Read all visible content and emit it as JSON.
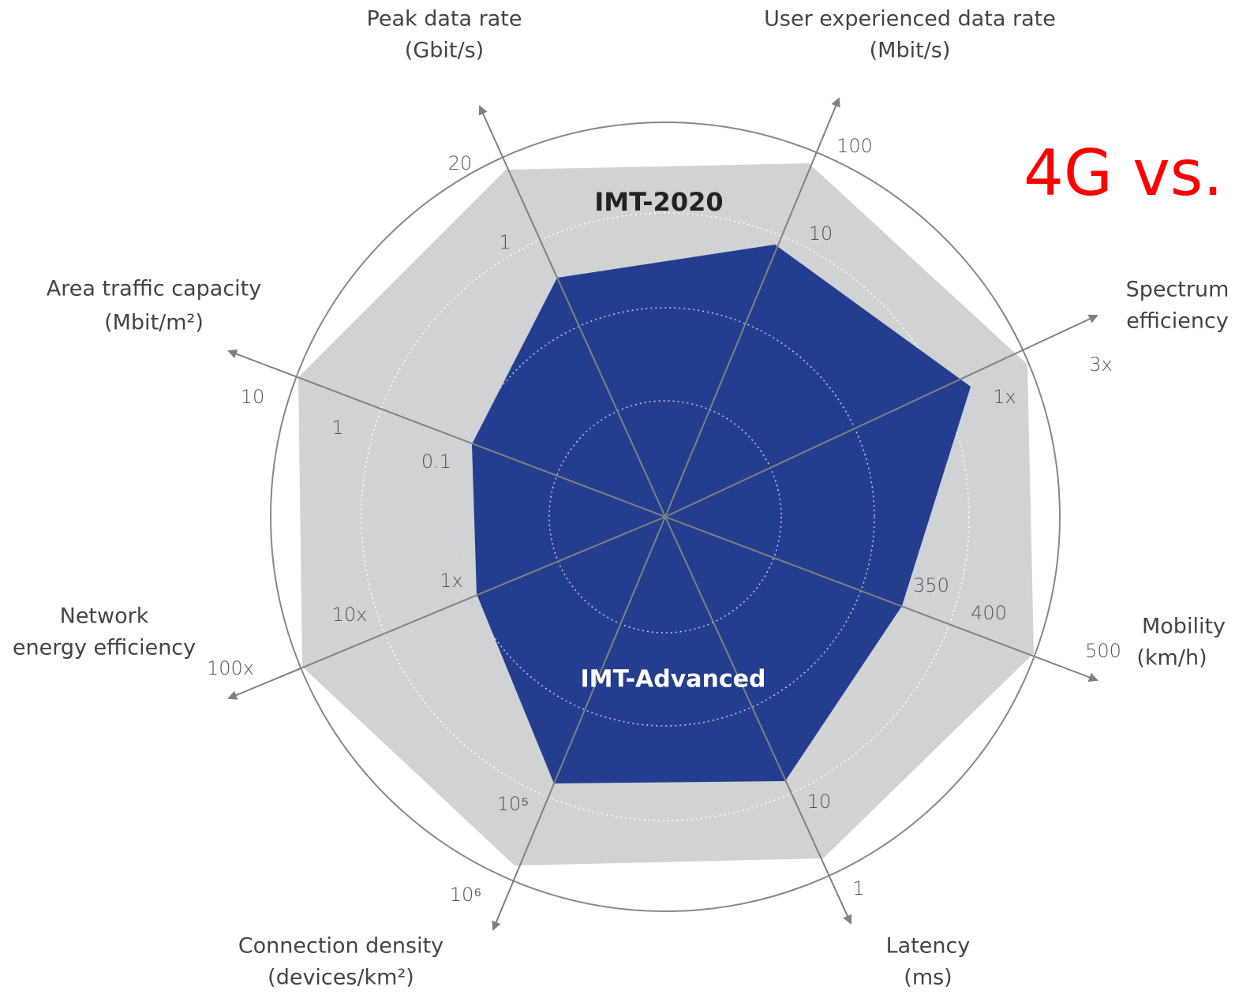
{
  "title": "4G vs.",
  "regions": {
    "outer": "IMT-2020",
    "inner": "IMT-Advanced"
  },
  "axes": [
    {
      "label": [
        "Peak data rate",
        "(Gbit/s)"
      ],
      "ticks": [
        "20",
        "1"
      ]
    },
    {
      "label": [
        "User experienced data rate",
        "(Mbit/s)"
      ],
      "ticks": [
        "100",
        "10"
      ]
    },
    {
      "label": [
        "Spectrum",
        "efficiency"
      ],
      "ticks": [
        "3x",
        "1x"
      ]
    },
    {
      "label": [
        "Mobility",
        "(km/h)"
      ],
      "ticks": [
        "500",
        "400",
        "350"
      ]
    },
    {
      "label": [
        "Latency",
        "(ms)"
      ],
      "ticks": [
        "10",
        "1"
      ]
    },
    {
      "label": [
        "Connection density",
        "(devices/km²)"
      ],
      "ticks": [
        "10⁵",
        "10⁶"
      ]
    },
    {
      "label": [
        "Network",
        "energy efficiency"
      ],
      "ticks": [
        "100x",
        "10x",
        "1x"
      ]
    },
    {
      "label": [
        "Area traffic capacity",
        "(Mbit/m²)"
      ],
      "ticks": [
        "10",
        "1",
        "0.1"
      ]
    }
  ]
}
